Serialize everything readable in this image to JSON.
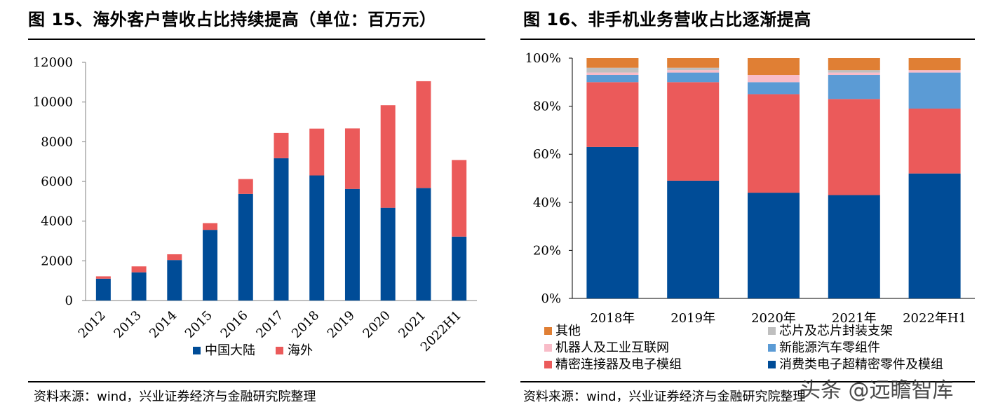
{
  "left": {
    "title": "图 15、海外客户营收占比持续提高（单位：百万元）",
    "source": "资料来源：wind，兴业证券经济与金融研究院整理"
  },
  "right": {
    "title": "图 16、非手机业务营收占比逐渐提高",
    "source": "资料来源：wind，兴业证券经济与金融研究院整理"
  },
  "watermark": "头条 @远瞻智库",
  "chart_data": [
    {
      "type": "bar",
      "stacked": true,
      "categories": [
        "2012",
        "2013",
        "2014",
        "2015",
        "2016",
        "2017",
        "2018",
        "2019",
        "2020",
        "2021",
        "2022H1"
      ],
      "series": [
        {
          "name": "中国大陆",
          "color": "#004C97",
          "values": [
            1100,
            1420,
            2040,
            3560,
            5370,
            7170,
            6300,
            5620,
            4670,
            5670,
            3220
          ]
        },
        {
          "name": "海外",
          "color": "#EB5A5A",
          "values": [
            120,
            300,
            290,
            340,
            750,
            1270,
            2360,
            3050,
            5170,
            5380,
            3860
          ]
        }
      ],
      "ylim": [
        0,
        12000
      ],
      "yticks": [
        0,
        2000,
        4000,
        6000,
        8000,
        10000,
        12000
      ],
      "yticklabels": [
        "0",
        "2000",
        "4000",
        "6000",
        "8000",
        "10000",
        "12000"
      ],
      "legend": "bottom",
      "grid": false
    },
    {
      "type": "bar",
      "stacked": true,
      "percent": true,
      "categories": [
        "2018年",
        "2019年",
        "2020年",
        "2021年",
        "2022年H1"
      ],
      "series": [
        {
          "name": "消费类电子超精密零件及模组",
          "color": "#004C97",
          "values": [
            63,
            49,
            44,
            43,
            52
          ]
        },
        {
          "name": "精密连接器及电子模组",
          "color": "#EB5A5A",
          "values": [
            27,
            41,
            41,
            40,
            27
          ]
        },
        {
          "name": "新能源汽车零组件",
          "color": "#5B9BD5",
          "values": [
            3,
            4,
            5,
            10,
            15
          ]
        },
        {
          "name": "机器人及工业互联网",
          "color": "#F8BCC8",
          "values": [
            1,
            1,
            3,
            1,
            1
          ]
        },
        {
          "name": "芯片及芯片封装支架",
          "color": "#BFBFBF",
          "values": [
            2,
            1,
            0,
            1,
            0
          ]
        },
        {
          "name": "其他",
          "color": "#E07F34",
          "values": [
            4,
            4,
            7,
            5,
            5
          ]
        }
      ],
      "ylim": [
        0,
        100
      ],
      "yticks": [
        0,
        20,
        40,
        60,
        80,
        100
      ],
      "yticklabels": [
        "0%",
        "20%",
        "40%",
        "60%",
        "80%",
        "100%"
      ],
      "legend": "bottom",
      "legend_order": [
        "其他",
        "芯片及芯片封装支架",
        "机器人及工业互联网",
        "新能源汽车零组件",
        "精密连接器及电子模组",
        "消费类电子超精密零件及模组"
      ],
      "grid": false
    }
  ]
}
